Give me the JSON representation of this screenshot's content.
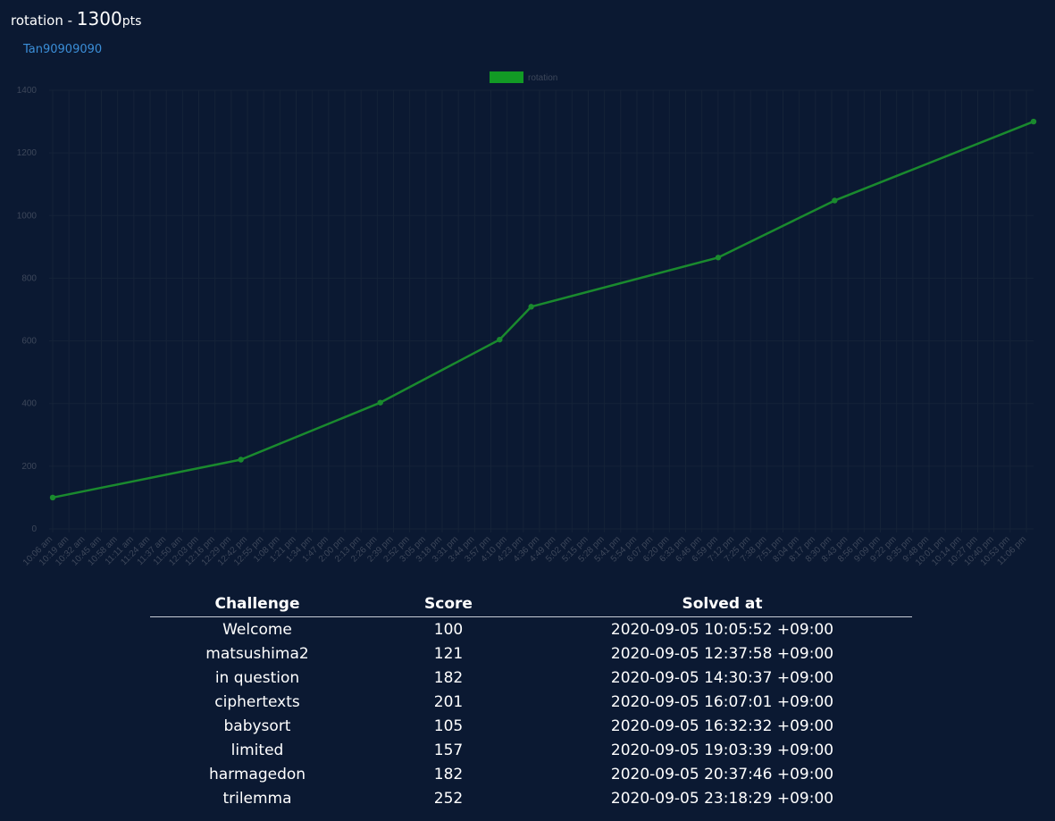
{
  "header": {
    "challenge_prefix": "rotation - ",
    "points": "1300",
    "points_unit": "pts",
    "member": "Tan90909090"
  },
  "colors": {
    "background": "#0b1932",
    "line": "#1a8a2e",
    "legend_box": "#129a25",
    "axis_text": "#3d475a",
    "grid": "#152338",
    "link": "#3b8ed8"
  },
  "chart_data": {
    "type": "line",
    "title": "",
    "legend": "rotation",
    "legend_position": "top-center",
    "ylim": [
      0,
      1400
    ],
    "y_ticks": [
      0,
      200,
      400,
      600,
      800,
      1000,
      1200,
      1400
    ],
    "x_ticks": [
      "10:06 am",
      "10:19 am",
      "10:32 am",
      "10:45 am",
      "10:58 am",
      "11:11 am",
      "11:24 am",
      "11:37 am",
      "11:50 am",
      "12:03 pm",
      "12:16 pm",
      "12:29 pm",
      "12:42 pm",
      "12:55 pm",
      "1:08 pm",
      "1:21 pm",
      "1:34 pm",
      "1:47 pm",
      "2:00 pm",
      "2:13 pm",
      "2:26 pm",
      "2:39 pm",
      "2:52 pm",
      "3:05 pm",
      "3:18 pm",
      "3:31 pm",
      "3:44 pm",
      "3:57 pm",
      "4:10 pm",
      "4:23 pm",
      "4:36 pm",
      "4:49 pm",
      "5:02 pm",
      "5:15 pm",
      "5:28 pm",
      "5:41 pm",
      "5:54 pm",
      "6:07 pm",
      "6:20 pm",
      "6:33 pm",
      "6:46 pm",
      "6:59 pm",
      "7:12 pm",
      "7:25 pm",
      "7:38 pm",
      "7:51 pm",
      "8:04 pm",
      "8:17 pm",
      "8:30 pm",
      "8:43 pm",
      "8:56 pm",
      "9:09 pm",
      "9:22 pm",
      "9:35 pm",
      "9:48 pm",
      "10:01 pm",
      "10:14 pm",
      "10:27 pm",
      "10:40 pm",
      "10:53 pm",
      "11:06 pm"
    ],
    "x_start_minutes": 605.87,
    "x_end_minutes": 1398.48,
    "series": [
      {
        "name": "rotation",
        "x_minutes": [
          605.87,
          757.97,
          870.62,
          967.02,
          992.53,
          1143.65,
          1237.77,
          1398.48
        ],
        "values": [
          100,
          221,
          403,
          604,
          709,
          866,
          1048,
          1300
        ]
      }
    ]
  },
  "table": {
    "headers": [
      "Challenge",
      "Score",
      "Solved at"
    ],
    "rows": [
      [
        "Welcome",
        "100",
        "2020-09-05 10:05:52 +09:00"
      ],
      [
        "matsushima2",
        "121",
        "2020-09-05 12:37:58 +09:00"
      ],
      [
        "in question",
        "182",
        "2020-09-05 14:30:37 +09:00"
      ],
      [
        "ciphertexts",
        "201",
        "2020-09-05 16:07:01 +09:00"
      ],
      [
        "babysort",
        "105",
        "2020-09-05 16:32:32 +09:00"
      ],
      [
        "limited",
        "157",
        "2020-09-05 19:03:39 +09:00"
      ],
      [
        "harmagedon",
        "182",
        "2020-09-05 20:37:46 +09:00"
      ],
      [
        "trilemma",
        "252",
        "2020-09-05 23:18:29 +09:00"
      ]
    ]
  }
}
